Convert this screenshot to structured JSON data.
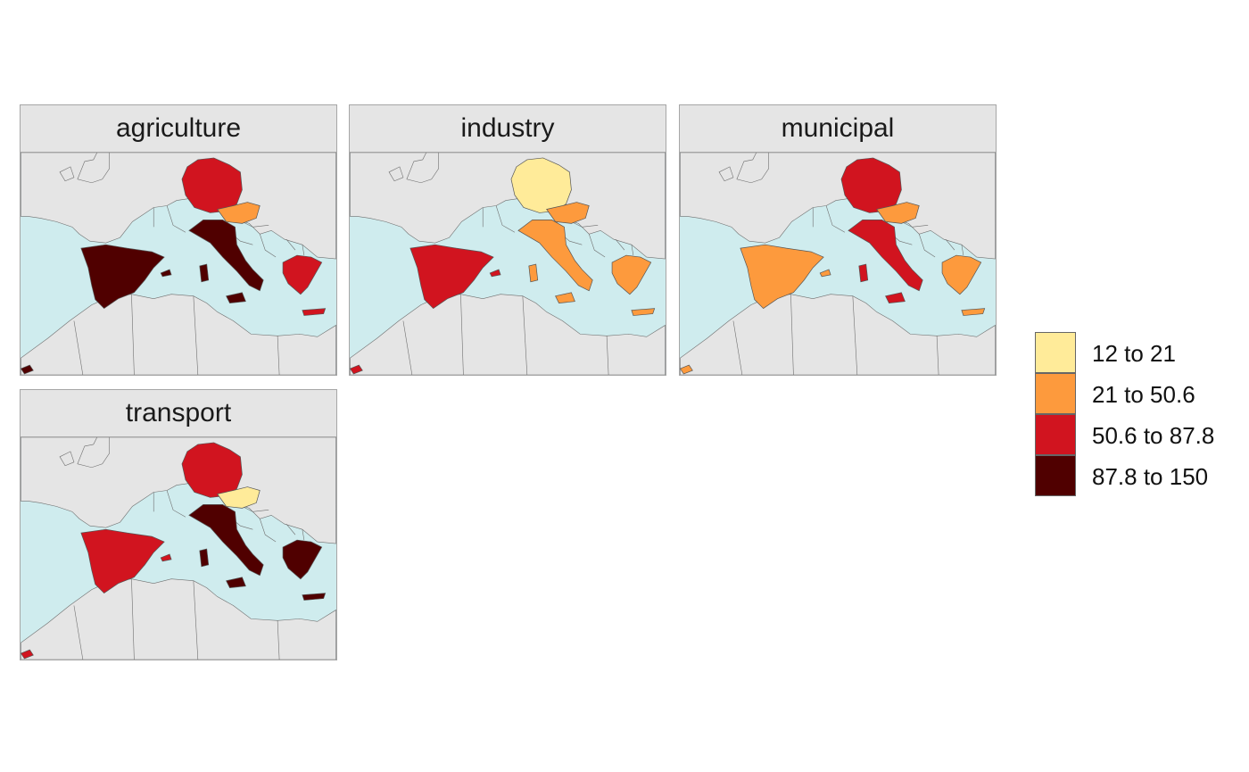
{
  "colors": {
    "sea": "#cfecee",
    "land": "#e5e5e5",
    "border": "#6f6f6f",
    "classes": [
      "#ffeb99",
      "#fd9a3d",
      "#d1141f",
      "#500000"
    ]
  },
  "legend": {
    "items": [
      {
        "label": "12 to 21",
        "color": "#ffeb99"
      },
      {
        "label": "21 to 50.6",
        "color": "#fd9a3d"
      },
      {
        "label": "50.6 to 87.8",
        "color": "#d1141f"
      },
      {
        "label": "87.8 to 150",
        "color": "#500000"
      }
    ]
  },
  "panels": [
    {
      "title": "agriculture",
      "classes": {
        "spain": 3,
        "germany": 2,
        "austria": 1,
        "italy": 3,
        "greece": 2
      }
    },
    {
      "title": "industry",
      "classes": {
        "spain": 2,
        "germany": 0,
        "austria": 1,
        "italy": 1,
        "greece": 1
      }
    },
    {
      "title": "municipal",
      "classes": {
        "spain": 1,
        "germany": 2,
        "austria": 1,
        "italy": 2,
        "greece": 1
      }
    },
    {
      "title": "transport",
      "classes": {
        "spain": 2,
        "germany": 2,
        "austria": 0,
        "italy": 3,
        "greece": 3
      }
    }
  ]
}
